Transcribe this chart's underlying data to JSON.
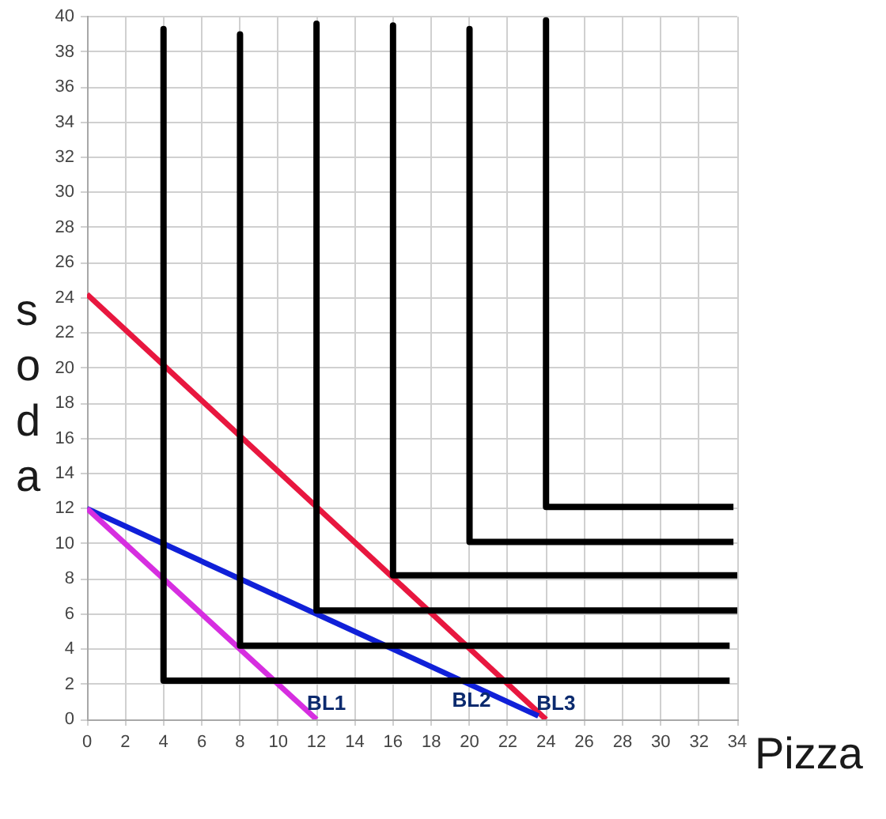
{
  "chart_data": {
    "type": "line",
    "xlabel": "Pizza",
    "ylabel": "soda",
    "xlim": [
      0,
      34
    ],
    "xticks": [
      0,
      2,
      4,
      6,
      8,
      10,
      12,
      14,
      16,
      18,
      20,
      22,
      24,
      26,
      28,
      30,
      32,
      34
    ],
    "ylim": [
      0,
      40
    ],
    "yticks": [
      0,
      2,
      4,
      6,
      8,
      10,
      12,
      14,
      16,
      18,
      20,
      22,
      24,
      26,
      28,
      30,
      32,
      34,
      36,
      38,
      40
    ],
    "grid": true,
    "series": [
      {
        "color": "#000000",
        "x": [
          4,
          4,
          33.6
        ],
        "values": [
          39.3,
          2.2,
          2.2
        ]
      },
      {
        "color": "#000000",
        "x": [
          8,
          8,
          33.6
        ],
        "values": [
          39,
          4.2,
          4.2
        ]
      },
      {
        "color": "#000000",
        "x": [
          12,
          12,
          34
        ],
        "values": [
          39.6,
          6.2,
          6.2
        ]
      },
      {
        "color": "#000000",
        "x": [
          16,
          16,
          34
        ],
        "values": [
          39.5,
          8.2,
          8.2
        ]
      },
      {
        "color": "#000000",
        "x": [
          20,
          20,
          33.8
        ],
        "values": [
          39.3,
          10.1,
          10.1
        ]
      },
      {
        "color": "#000000",
        "x": [
          24,
          24,
          33.8
        ],
        "values": [
          39.8,
          12.1,
          12.1
        ]
      },
      {
        "name": "BL1",
        "color": "#d62ee0",
        "x": [
          0,
          12
        ],
        "values": [
          12,
          0
        ]
      },
      {
        "name": "BL2",
        "color": "#1020d8",
        "x": [
          0,
          23.6
        ],
        "values": [
          12,
          0.2
        ]
      },
      {
        "name": "BL3",
        "color": "#e8173f",
        "x": [
          0,
          24
        ],
        "values": [
          24.2,
          0
        ]
      }
    ]
  }
}
